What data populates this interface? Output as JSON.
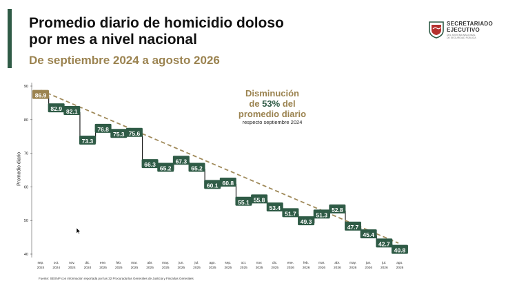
{
  "header": {
    "title_line1": "Promedio diario de homicidio doloso",
    "title_line2": "por mes a nivel nacional",
    "subtitle": "De septiembre 2024 a agosto 2026"
  },
  "logo": {
    "line1": "SECRETARIADO",
    "line2": "EJECUTIVO",
    "line3": "DEL SISTEMA NACIONAL",
    "line4": "DE SEGURIDAD PÚBLICA"
  },
  "annotation": {
    "line1": "Disminución",
    "line2_pre": "de ",
    "line2_pct": "53%",
    "line2_post": " del",
    "line3": "promedio diario",
    "line4": "respecto septiembre 2024"
  },
  "source": "Fuente: SESNP con información reportada por las 32 Procuradurías Generales de Justicia y Fiscalías Generales",
  "colors": {
    "green": "#2f5b46",
    "gold": "#9b8350",
    "trend": "#a08a5a"
  },
  "chart_data": {
    "type": "line",
    "title": "Promedio diario de homicidio doloso por mes a nivel nacional",
    "subtitle": "De septiembre 2024 a agosto 2026",
    "ylabel": "Promedio diario",
    "xlabel": "",
    "ylim": [
      40,
      90
    ],
    "yticks": [
      40,
      50,
      60,
      70,
      80,
      90
    ],
    "categories": [
      [
        "sep.",
        "2024"
      ],
      [
        "oct.",
        "2024"
      ],
      [
        "nov.",
        "2024"
      ],
      [
        "dic.",
        "2024"
      ],
      [
        "ene.",
        "2025"
      ],
      [
        "feb.",
        "2025"
      ],
      [
        "mar.",
        "2025"
      ],
      [
        "abr.",
        "2025"
      ],
      [
        "may.",
        "2025"
      ],
      [
        "jun.",
        "2025"
      ],
      [
        "jul.",
        "2025"
      ],
      [
        "ago.",
        "2025"
      ],
      [
        "sep.",
        "2025"
      ],
      [
        "oct.",
        "2025"
      ],
      [
        "nov.",
        "2025"
      ],
      [
        "dic.",
        "2025"
      ],
      [
        "ene.",
        "2026"
      ],
      [
        "feb.",
        "2026"
      ],
      [
        "mar.",
        "2026"
      ],
      [
        "abr.",
        "2026"
      ],
      [
        "may.",
        "2026"
      ],
      [
        "jun.",
        "2026"
      ],
      [
        "jul.",
        "2026"
      ],
      [
        "ago.",
        "2026"
      ]
    ],
    "values": [
      86.9,
      82.9,
      82.1,
      73.3,
      76.8,
      75.3,
      75.6,
      66.3,
      65.2,
      67.3,
      65.2,
      60.1,
      60.8,
      55.1,
      55.8,
      53.4,
      51.7,
      49.3,
      51.3,
      52.8,
      47.7,
      45.4,
      42.7,
      40.8
    ],
    "value_labels": [
      "86.9",
      "82.9",
      "82.1",
      "73.3",
      "76.8",
      "75.3",
      "75.6",
      "66.3",
      "65.2",
      "67.3",
      "65.2",
      "60.1",
      "60.8",
      "55.1",
      "55.8",
      "53.4",
      "51.7",
      "49.3",
      "51.3",
      "52.8",
      "47.7",
      "45.4",
      "42.7",
      "40.8"
    ],
    "trend": {
      "from": 86.9,
      "to": 40.8,
      "style": "dashed"
    },
    "grid": false,
    "legend": "none"
  }
}
